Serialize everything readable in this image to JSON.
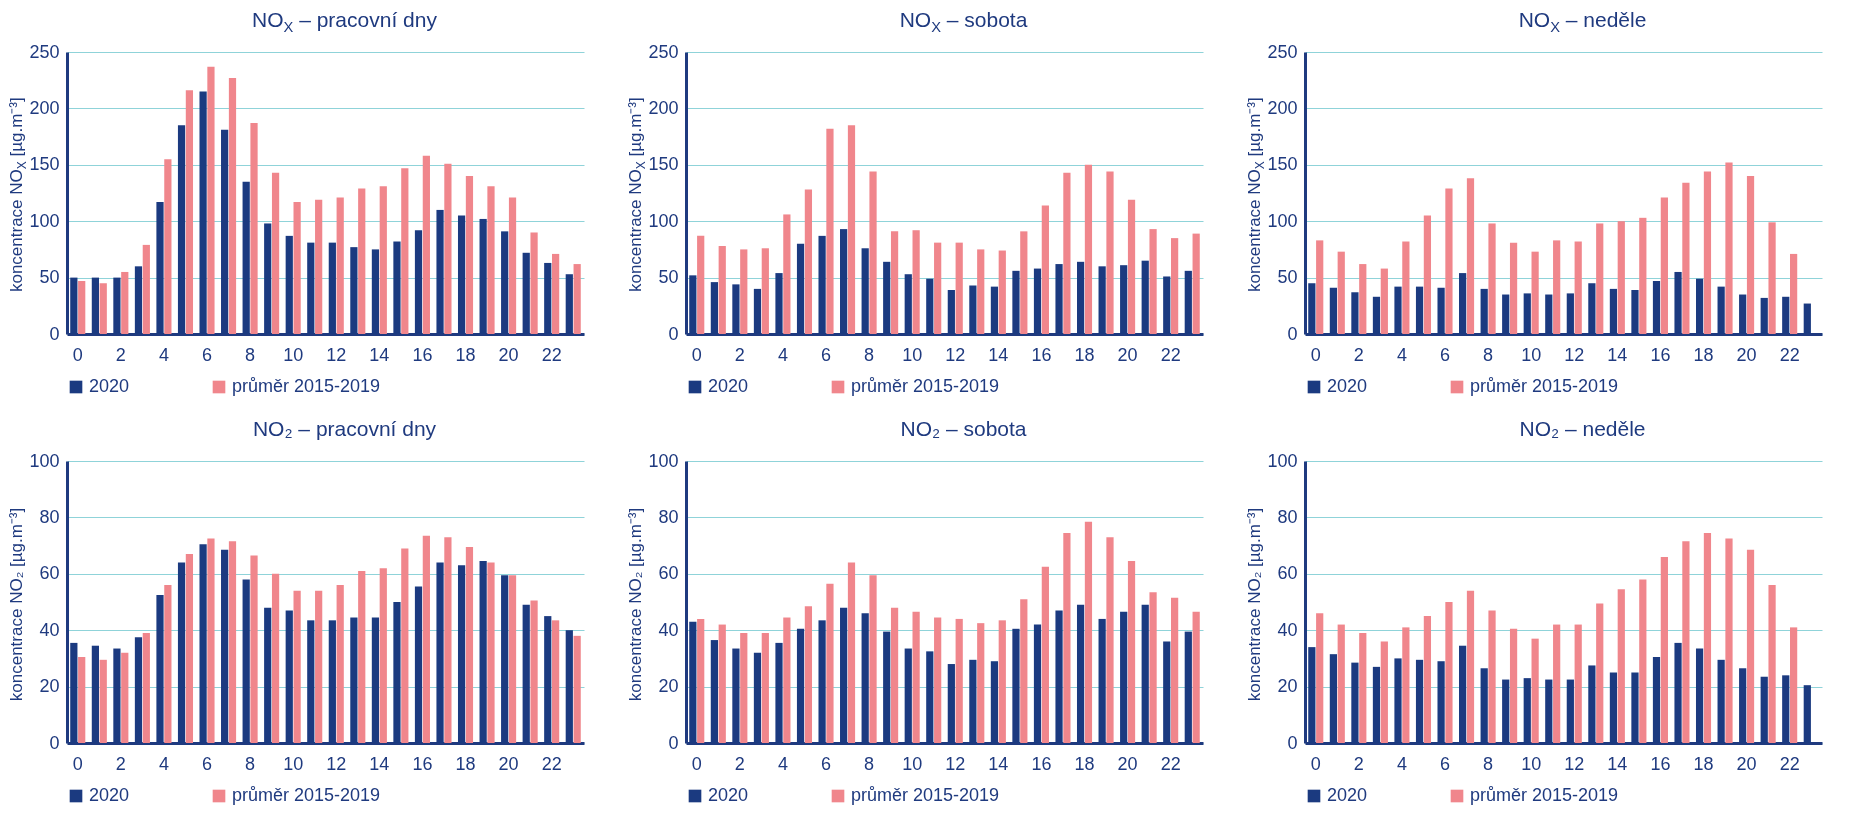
{
  "chart_data": [
    {
      "type": "bar",
      "title": "NO$_{X}$ – pracovní dny",
      "ylabel": "koncentrace NO$_{X}$ [µg.m⁻³]",
      "categories": [
        "0",
        null,
        "2",
        null,
        "4",
        null,
        "6",
        null,
        "8",
        null,
        "10",
        null,
        "12",
        null,
        "14",
        null,
        "16",
        null,
        "18",
        null,
        "20",
        null,
        "22",
        null
      ],
      "ylim": [
        0,
        250
      ],
      "yticks": [
        0,
        50,
        100,
        150,
        200,
        250
      ],
      "grid": "y",
      "legend": "bottom",
      "series": [
        {
          "name": "2020",
          "color": "#1b3a80",
          "values": [
            50,
            50,
            50,
            60,
            117,
            185,
            215,
            181,
            135,
            98,
            87,
            81,
            81,
            77,
            75,
            82,
            92,
            110,
            105,
            102,
            91,
            72,
            63,
            53
          ]
        },
        {
          "name": "průměr 2015-2019",
          "color": "#f0868c",
          "values": [
            47,
            45,
            55,
            79,
            155,
            216,
            237,
            227,
            187,
            143,
            117,
            119,
            121,
            129,
            131,
            147,
            158,
            151,
            140,
            131,
            121,
            90,
            71,
            62
          ]
        }
      ]
    },
    {
      "type": "bar",
      "title": "NO$_{X}$ – sobota",
      "ylabel": "koncentrace NO$_{X}$ [µg.m⁻³]",
      "categories": [
        "0",
        null,
        "2",
        null,
        "4",
        null,
        "6",
        null,
        "8",
        null,
        "10",
        null,
        "12",
        null,
        "14",
        null,
        "16",
        null,
        "18",
        null,
        "20",
        null,
        "22",
        null
      ],
      "ylim": [
        0,
        250
      ],
      "yticks": [
        0,
        50,
        100,
        150,
        200,
        250
      ],
      "grid": "y",
      "legend": "bottom",
      "series": [
        {
          "name": "2020",
          "color": "#1b3a80",
          "values": [
            52,
            46,
            44,
            40,
            54,
            80,
            87,
            93,
            76,
            64,
            53,
            49,
            39,
            43,
            42,
            56,
            58,
            62,
            64,
            60,
            61,
            65,
            51,
            56
          ]
        },
        {
          "name": "průměr 2015-2019",
          "color": "#f0868c",
          "values": [
            87,
            78,
            75,
            76,
            106,
            128,
            182,
            185,
            144,
            91,
            92,
            81,
            81,
            75,
            74,
            91,
            114,
            143,
            150,
            144,
            119,
            93,
            85,
            89
          ]
        }
      ]
    },
    {
      "type": "bar",
      "title": "NO$_{X}$ – neděle",
      "ylabel": "koncentrace NO$_{X}$ [µg.m⁻³]",
      "categories": [
        "0",
        null,
        "2",
        null,
        "4",
        null,
        "6",
        null,
        "8",
        null,
        "10",
        null,
        "12",
        null,
        "14",
        null,
        "16",
        null,
        "18",
        null,
        "20",
        null,
        "22",
        null
      ],
      "ylim": [
        0,
        250
      ],
      "yticks": [
        0,
        50,
        100,
        150,
        200,
        250
      ],
      "grid": "y",
      "legend": "bottom",
      "series": [
        {
          "name": "2020",
          "color": "#1b3a80",
          "values": [
            45,
            41,
            37,
            33,
            42,
            42,
            41,
            54,
            40,
            35,
            36,
            35,
            36,
            45,
            40,
            39,
            47,
            55,
            49,
            42,
            35,
            32,
            33,
            27
          ]
        },
        {
          "name": "průměr 2015-2019",
          "color": "#f0868c",
          "values": [
            83,
            73,
            62,
            58,
            82,
            105,
            129,
            138,
            98,
            81,
            73,
            83,
            82,
            98,
            100,
            103,
            121,
            134,
            144,
            152,
            140,
            99,
            71,
            null
          ]
        }
      ]
    },
    {
      "type": "bar",
      "title": "NO₂ – pracovní dny",
      "ylabel": "koncentrace NO₂ [µg.m⁻³]",
      "categories": [
        "0",
        null,
        "2",
        null,
        "4",
        null,
        "6",
        null,
        "8",
        null,
        "10",
        null,
        "12",
        null,
        "14",
        null,
        "16",
        null,
        "18",
        null,
        "20",
        null,
        "22",
        null
      ],
      "ylim": [
        0,
        100
      ],
      "yticks": [
        0,
        20,
        40,
        60,
        80,
        100
      ],
      "grid": "y",
      "legend": "bottom",
      "series": [
        {
          "name": "2020",
          "color": "#1b3a80",
          "values": [
            35.5,
            34.5,
            33.5,
            37.5,
            52.5,
            64,
            70.5,
            68.5,
            58,
            48,
            47,
            43.5,
            43.5,
            44.5,
            44.5,
            50,
            55.5,
            64,
            63,
            64.5,
            59.5,
            49,
            45,
            40
          ]
        },
        {
          "name": "průměr 2015-2019",
          "color": "#f0868c",
          "values": [
            30.5,
            29.5,
            32,
            39,
            56,
            67,
            72.5,
            71.5,
            66.5,
            60,
            54,
            54,
            56,
            61,
            62,
            69,
            73.5,
            73,
            69.5,
            64,
            59.5,
            50.5,
            43.5,
            38
          ]
        }
      ]
    },
    {
      "type": "bar",
      "title": "NO₂ – sobota",
      "ylabel": "koncentrace NO₂ [µg.m⁻³]",
      "categories": [
        "0",
        null,
        "2",
        null,
        "4",
        null,
        "6",
        null,
        "8",
        null,
        "10",
        null,
        "12",
        null,
        "14",
        null,
        "16",
        null,
        "18",
        null,
        "20",
        null,
        "22",
        null
      ],
      "ylim": [
        0,
        100
      ],
      "yticks": [
        0,
        20,
        40,
        60,
        80,
        100
      ],
      "grid": "y",
      "legend": "bottom",
      "series": [
        {
          "name": "2020",
          "color": "#1b3a80",
          "values": [
            43,
            36.5,
            33.5,
            32,
            35.5,
            40.5,
            43.5,
            48,
            46,
            39.5,
            33.5,
            32.5,
            28,
            29.5,
            29,
            40.5,
            42,
            47,
            49,
            44,
            46.5,
            49,
            36,
            39.5
          ]
        },
        {
          "name": "průměr 2015-2019",
          "color": "#f0868c",
          "values": [
            44,
            42,
            39,
            39,
            44.5,
            48.5,
            56.5,
            64,
            59.5,
            48,
            46.5,
            44.5,
            44,
            42.5,
            43.5,
            51,
            62.5,
            74.5,
            78.5,
            73,
            64.5,
            53.5,
            51.5,
            46.5
          ]
        }
      ]
    },
    {
      "type": "bar",
      "title": "NO₂ – neděle",
      "ylabel": "koncentrace NO₂ [µg.m⁻³]",
      "categories": [
        "0",
        null,
        "2",
        null,
        "4",
        null,
        "6",
        null,
        "8",
        null,
        "10",
        null,
        "12",
        null,
        "14",
        null,
        "16",
        null,
        "18",
        null,
        "20",
        null,
        "22",
        null
      ],
      "ylim": [
        0,
        100
      ],
      "yticks": [
        0,
        20,
        40,
        60,
        80,
        100
      ],
      "grid": "y",
      "legend": "bottom",
      "series": [
        {
          "name": "2020",
          "color": "#1b3a80",
          "values": [
            34,
            31.5,
            28.5,
            27,
            30,
            29.5,
            29,
            34.5,
            26.5,
            22.5,
            23,
            22.5,
            22.5,
            27.5,
            25,
            25,
            30.5,
            35.5,
            33.5,
            29.5,
            26.5,
            23.5,
            24,
            20.5
          ]
        },
        {
          "name": "průměr 2015-2019",
          "color": "#f0868c",
          "values": [
            46,
            42,
            39,
            36,
            41,
            45,
            50,
            54,
            47,
            40.5,
            37,
            42,
            42,
            49.5,
            54.5,
            58,
            66,
            71.5,
            74.5,
            72.5,
            68.5,
            56,
            41,
            null
          ]
        }
      ]
    }
  ]
}
